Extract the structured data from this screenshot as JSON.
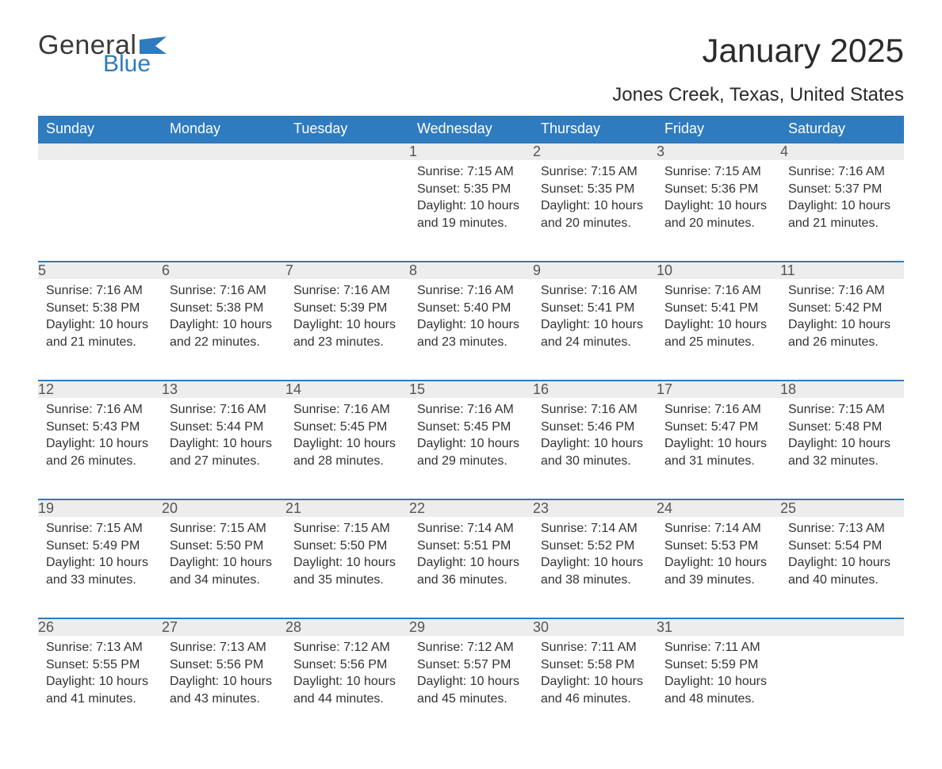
{
  "brand": {
    "word1": "General",
    "word2": "Blue",
    "flag_color": "#2f7bbf"
  },
  "title": "January 2025",
  "location": "Jones Creek, Texas, United States",
  "colors": {
    "header_bg": "#2f7bbf",
    "header_text": "#ffffff",
    "daynum_bg": "#ededed",
    "row_border": "#2f7bbf",
    "body_text": "#333333",
    "background": "#ffffff"
  },
  "layout": {
    "columns": 7,
    "rows": 5,
    "first_weekday_index": 3,
    "days_in_month": 31,
    "font_family": "Arial",
    "day_header_fontsize": 18,
    "daynum_fontsize": 18,
    "content_fontsize": 16,
    "title_fontsize": 42,
    "location_fontsize": 24
  },
  "weekdays": [
    "Sunday",
    "Monday",
    "Tuesday",
    "Wednesday",
    "Thursday",
    "Friday",
    "Saturday"
  ],
  "days": [
    {
      "n": 1,
      "sunrise": "7:15 AM",
      "sunset": "5:35 PM",
      "daylight": "10 hours and 19 minutes."
    },
    {
      "n": 2,
      "sunrise": "7:15 AM",
      "sunset": "5:35 PM",
      "daylight": "10 hours and 20 minutes."
    },
    {
      "n": 3,
      "sunrise": "7:15 AM",
      "sunset": "5:36 PM",
      "daylight": "10 hours and 20 minutes."
    },
    {
      "n": 4,
      "sunrise": "7:16 AM",
      "sunset": "5:37 PM",
      "daylight": "10 hours and 21 minutes."
    },
    {
      "n": 5,
      "sunrise": "7:16 AM",
      "sunset": "5:38 PM",
      "daylight": "10 hours and 21 minutes."
    },
    {
      "n": 6,
      "sunrise": "7:16 AM",
      "sunset": "5:38 PM",
      "daylight": "10 hours and 22 minutes."
    },
    {
      "n": 7,
      "sunrise": "7:16 AM",
      "sunset": "5:39 PM",
      "daylight": "10 hours and 23 minutes."
    },
    {
      "n": 8,
      "sunrise": "7:16 AM",
      "sunset": "5:40 PM",
      "daylight": "10 hours and 23 minutes."
    },
    {
      "n": 9,
      "sunrise": "7:16 AM",
      "sunset": "5:41 PM",
      "daylight": "10 hours and 24 minutes."
    },
    {
      "n": 10,
      "sunrise": "7:16 AM",
      "sunset": "5:41 PM",
      "daylight": "10 hours and 25 minutes."
    },
    {
      "n": 11,
      "sunrise": "7:16 AM",
      "sunset": "5:42 PM",
      "daylight": "10 hours and 26 minutes."
    },
    {
      "n": 12,
      "sunrise": "7:16 AM",
      "sunset": "5:43 PM",
      "daylight": "10 hours and 26 minutes."
    },
    {
      "n": 13,
      "sunrise": "7:16 AM",
      "sunset": "5:44 PM",
      "daylight": "10 hours and 27 minutes."
    },
    {
      "n": 14,
      "sunrise": "7:16 AM",
      "sunset": "5:45 PM",
      "daylight": "10 hours and 28 minutes."
    },
    {
      "n": 15,
      "sunrise": "7:16 AM",
      "sunset": "5:45 PM",
      "daylight": "10 hours and 29 minutes."
    },
    {
      "n": 16,
      "sunrise": "7:16 AM",
      "sunset": "5:46 PM",
      "daylight": "10 hours and 30 minutes."
    },
    {
      "n": 17,
      "sunrise": "7:16 AM",
      "sunset": "5:47 PM",
      "daylight": "10 hours and 31 minutes."
    },
    {
      "n": 18,
      "sunrise": "7:15 AM",
      "sunset": "5:48 PM",
      "daylight": "10 hours and 32 minutes."
    },
    {
      "n": 19,
      "sunrise": "7:15 AM",
      "sunset": "5:49 PM",
      "daylight": "10 hours and 33 minutes."
    },
    {
      "n": 20,
      "sunrise": "7:15 AM",
      "sunset": "5:50 PM",
      "daylight": "10 hours and 34 minutes."
    },
    {
      "n": 21,
      "sunrise": "7:15 AM",
      "sunset": "5:50 PM",
      "daylight": "10 hours and 35 minutes."
    },
    {
      "n": 22,
      "sunrise": "7:14 AM",
      "sunset": "5:51 PM",
      "daylight": "10 hours and 36 minutes."
    },
    {
      "n": 23,
      "sunrise": "7:14 AM",
      "sunset": "5:52 PM",
      "daylight": "10 hours and 38 minutes."
    },
    {
      "n": 24,
      "sunrise": "7:14 AM",
      "sunset": "5:53 PM",
      "daylight": "10 hours and 39 minutes."
    },
    {
      "n": 25,
      "sunrise": "7:13 AM",
      "sunset": "5:54 PM",
      "daylight": "10 hours and 40 minutes."
    },
    {
      "n": 26,
      "sunrise": "7:13 AM",
      "sunset": "5:55 PM",
      "daylight": "10 hours and 41 minutes."
    },
    {
      "n": 27,
      "sunrise": "7:13 AM",
      "sunset": "5:56 PM",
      "daylight": "10 hours and 43 minutes."
    },
    {
      "n": 28,
      "sunrise": "7:12 AM",
      "sunset": "5:56 PM",
      "daylight": "10 hours and 44 minutes."
    },
    {
      "n": 29,
      "sunrise": "7:12 AM",
      "sunset": "5:57 PM",
      "daylight": "10 hours and 45 minutes."
    },
    {
      "n": 30,
      "sunrise": "7:11 AM",
      "sunset": "5:58 PM",
      "daylight": "10 hours and 46 minutes."
    },
    {
      "n": 31,
      "sunrise": "7:11 AM",
      "sunset": "5:59 PM",
      "daylight": "10 hours and 48 minutes."
    }
  ],
  "labels": {
    "sunrise": "Sunrise: ",
    "sunset": "Sunset: ",
    "daylight": "Daylight: "
  }
}
